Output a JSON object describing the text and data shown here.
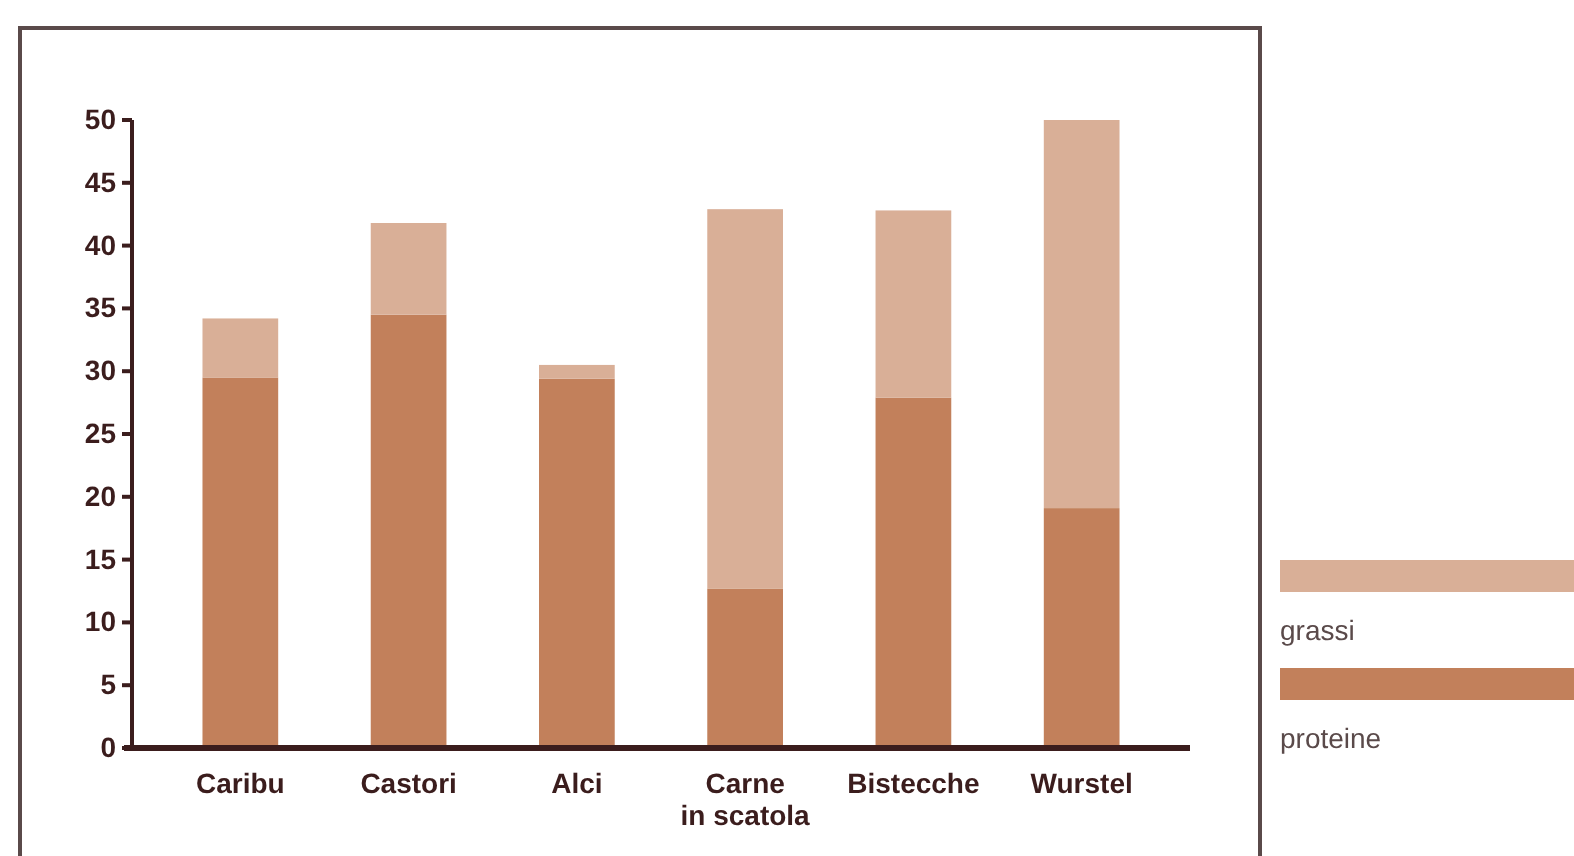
{
  "chart_data": {
    "type": "bar",
    "stacked": true,
    "categories": [
      "Caribu",
      "Castori",
      "Alci",
      "Carne in scatola",
      "Bistecche",
      "Wurstel"
    ],
    "series": [
      {
        "name": "proteine",
        "color": "#c2805b",
        "values": [
          29.5,
          34.5,
          29.4,
          12.7,
          27.9,
          19.1
        ]
      },
      {
        "name": "grassi",
        "color": "#d9af97",
        "values": [
          4.7,
          7.3,
          1.1,
          30.2,
          14.9,
          30.9
        ]
      }
    ],
    "ylim": [
      0,
      50
    ],
    "yticks": [
      0,
      5,
      10,
      15,
      20,
      25,
      30,
      35,
      40,
      45,
      50
    ],
    "grid": false,
    "legend": "right"
  }
}
